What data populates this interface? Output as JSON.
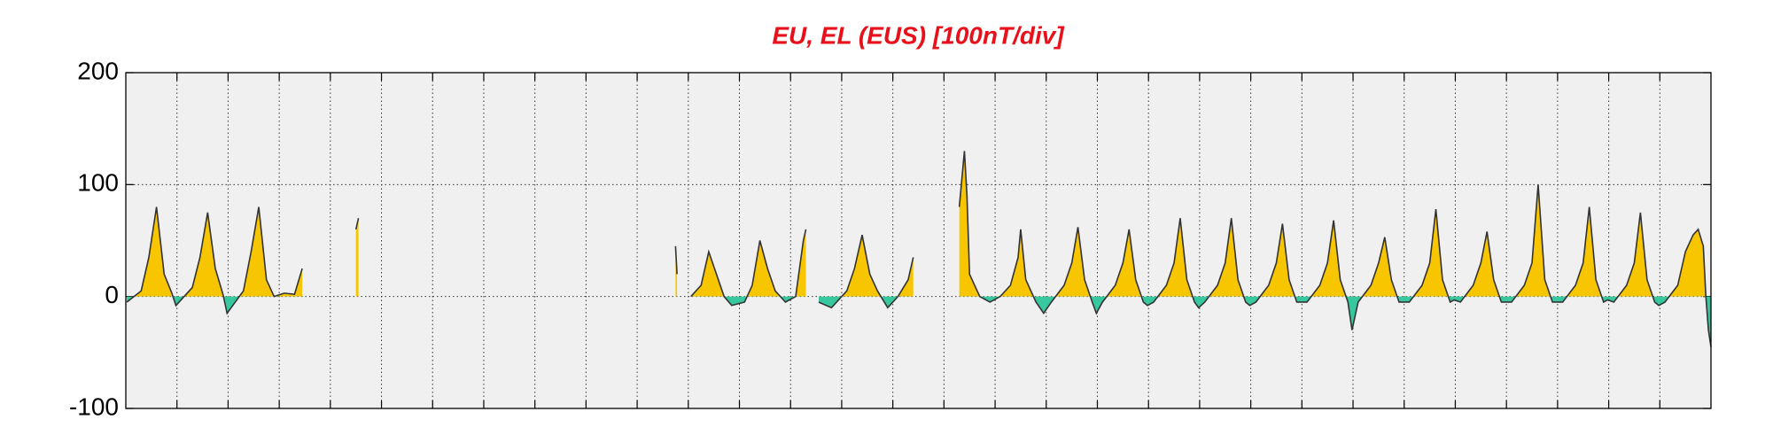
{
  "chart_data": {
    "type": "area",
    "title": "EU, EL (EUS)  [100nT/div]",
    "xlim": [
      0,
      31
    ],
    "xticks": [
      1,
      2,
      3,
      4,
      5,
      6,
      7,
      8,
      9,
      10,
      11,
      12,
      13,
      14,
      15,
      16,
      17,
      18,
      19,
      20,
      21,
      22,
      23,
      24,
      25,
      26,
      27,
      28,
      29,
      30
    ],
    "ylim": [
      -100,
      200
    ],
    "yticks": [
      -100,
      0,
      100,
      200
    ],
    "grid": true,
    "fill_colors": {
      "positive": "#f7c600",
      "negative": "#38c8a0"
    },
    "x": [
      0.02,
      0.3,
      0.45,
      0.6,
      0.75,
      0.9,
      0.98,
      1.3,
      1.45,
      1.6,
      1.75,
      1.9,
      1.98,
      2.3,
      2.45,
      2.6,
      2.75,
      2.9,
      3.1,
      3.3,
      3.45,
      3.5,
      4.5,
      4.55,
      4.6,
      10.75,
      10.78,
      10.8,
      11.05,
      11.25,
      11.4,
      11.55,
      11.7,
      11.85,
      12.1,
      12.25,
      12.4,
      12.55,
      12.7,
      12.9,
      13.1,
      13.25,
      13.3,
      13.35,
      13.55,
      13.8,
      14.1,
      14.25,
      14.4,
      14.55,
      14.7,
      14.9,
      15.1,
      15.3,
      15.4,
      15.45,
      16.3,
      16.4,
      16.45,
      16.5,
      16.7,
      16.9,
      17.1,
      17.3,
      17.45,
      17.5,
      17.6,
      17.8,
      17.95,
      18.1,
      18.35,
      18.5,
      18.62,
      18.75,
      18.9,
      18.98,
      19.1,
      19.35,
      19.5,
      19.62,
      19.75,
      19.9,
      19.98,
      20.1,
      20.35,
      20.5,
      20.62,
      20.75,
      20.9,
      20.98,
      21.1,
      21.35,
      21.5,
      21.62,
      21.75,
      21.9,
      21.98,
      22.1,
      22.35,
      22.5,
      22.62,
      22.75,
      22.9,
      22.98,
      23.1,
      23.35,
      23.5,
      23.62,
      23.75,
      23.9,
      23.98,
      24.1,
      24.35,
      24.5,
      24.62,
      24.75,
      24.9,
      24.98,
      25.1,
      25.35,
      25.5,
      25.62,
      25.75,
      25.9,
      25.98,
      26.1,
      26.35,
      26.5,
      26.62,
      26.75,
      26.9,
      26.98,
      27.1,
      27.35,
      27.5,
      27.62,
      27.75,
      27.9,
      27.98,
      28.1,
      28.35,
      28.5,
      28.62,
      28.75,
      28.9,
      28.98,
      29.1,
      29.35,
      29.5,
      29.62,
      29.75,
      29.9,
      29.98,
      30.1,
      30.35,
      30.5,
      30.65,
      30.75,
      30.85,
      30.9,
      30.95,
      31
    ],
    "series": [
      {
        "color": "#333333",
        "values": [
          -5,
          5,
          35,
          80,
          20,
          3,
          -8,
          8,
          35,
          75,
          25,
          2,
          -15,
          5,
          40,
          80,
          15,
          0,
          3,
          2,
          25,
          null,
          60,
          70,
          null,
          45,
          20,
          null,
          0,
          10,
          40,
          20,
          0,
          -8,
          -5,
          10,
          50,
          25,
          5,
          -5,
          0,
          50,
          60,
          null,
          -5,
          -10,
          5,
          25,
          55,
          20,
          5,
          -10,
          0,
          15,
          35,
          null,
          80,
          130,
          90,
          20,
          0,
          -5,
          0,
          10,
          35,
          60,
          15,
          -5,
          -15,
          -5,
          10,
          30,
          62,
          15,
          -5,
          -15,
          -5,
          10,
          30,
          60,
          15,
          -5,
          -8,
          -5,
          10,
          30,
          70,
          15,
          -5,
          -10,
          -5,
          10,
          30,
          70,
          15,
          -5,
          -8,
          -5,
          10,
          30,
          65,
          15,
          -5,
          -5,
          -5,
          10,
          30,
          68,
          15,
          -5,
          -30,
          -5,
          10,
          30,
          53,
          15,
          -5,
          -5,
          -5,
          10,
          30,
          78,
          15,
          -5,
          -3,
          -5,
          10,
          30,
          58,
          15,
          -5,
          -5,
          -5,
          10,
          30,
          100,
          15,
          -5,
          -5,
          -5,
          10,
          30,
          80,
          15,
          -5,
          -3,
          -5,
          10,
          30,
          75,
          15,
          -5,
          -8,
          -5,
          10,
          40,
          55,
          60,
          45,
          0,
          -30,
          -45
        ]
      }
    ]
  }
}
